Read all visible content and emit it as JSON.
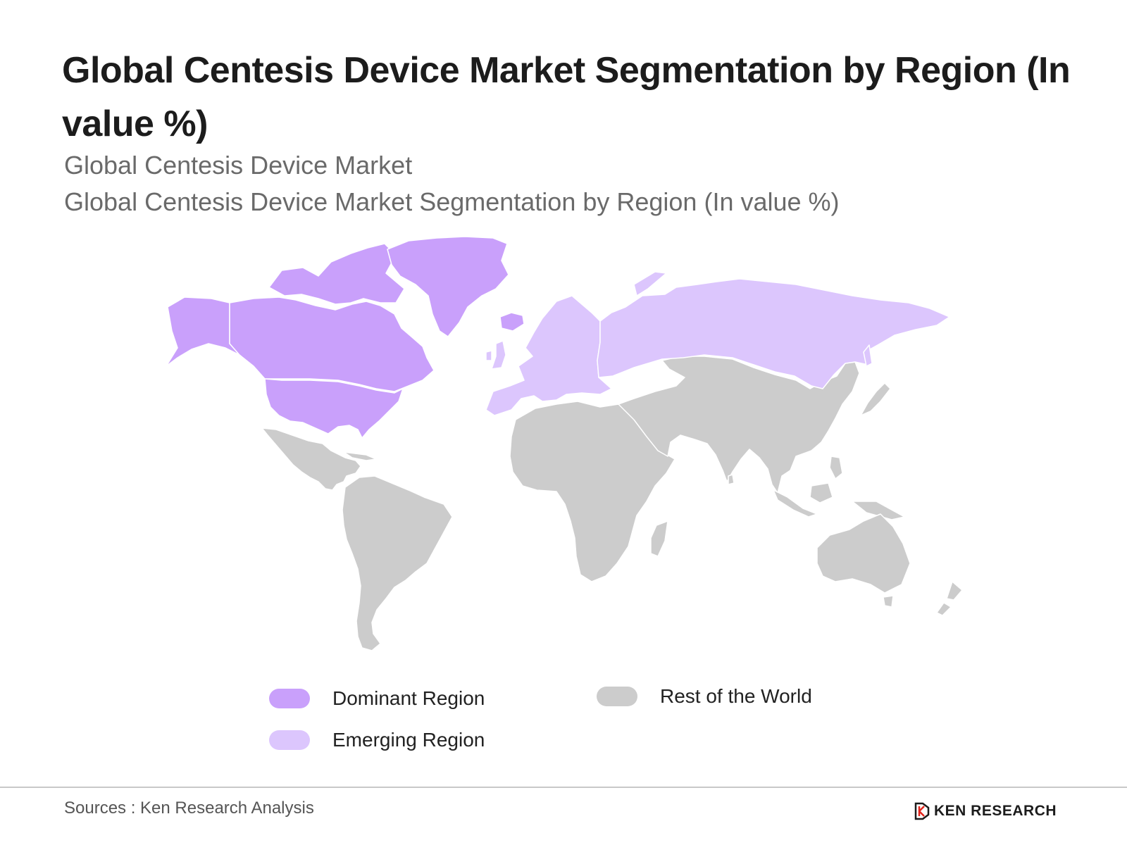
{
  "title": "Global Centesis Device Market Segmentation by Region (In value %)",
  "subtitle_1": "Global Centesis Device Market",
  "subtitle_2": "Global Centesis Device Market Segmentation by Region (In value %)",
  "colors": {
    "dominant": "#c9a0fb",
    "emerging": "#dcc6fd",
    "rest": "#cccccc",
    "border": "#ffffff"
  },
  "regions": {
    "dominant": [
      "Alaska",
      "Canada",
      "United States",
      "Greenland",
      "Iceland"
    ],
    "emerging": [
      "Europe",
      "Russia"
    ],
    "rest": [
      "Mexico and Central America",
      "South America",
      "Africa",
      "Middle East",
      "Asia",
      "Oceania"
    ]
  },
  "legend": {
    "dominant": "Dominant Region",
    "emerging": "Emerging Region",
    "rest": "Rest of the World"
  },
  "footer": {
    "source": "Sources : Ken Research Analysis",
    "brand": "KEN RESEARCH",
    "logo_icon": "ken-research-logo-icon"
  }
}
